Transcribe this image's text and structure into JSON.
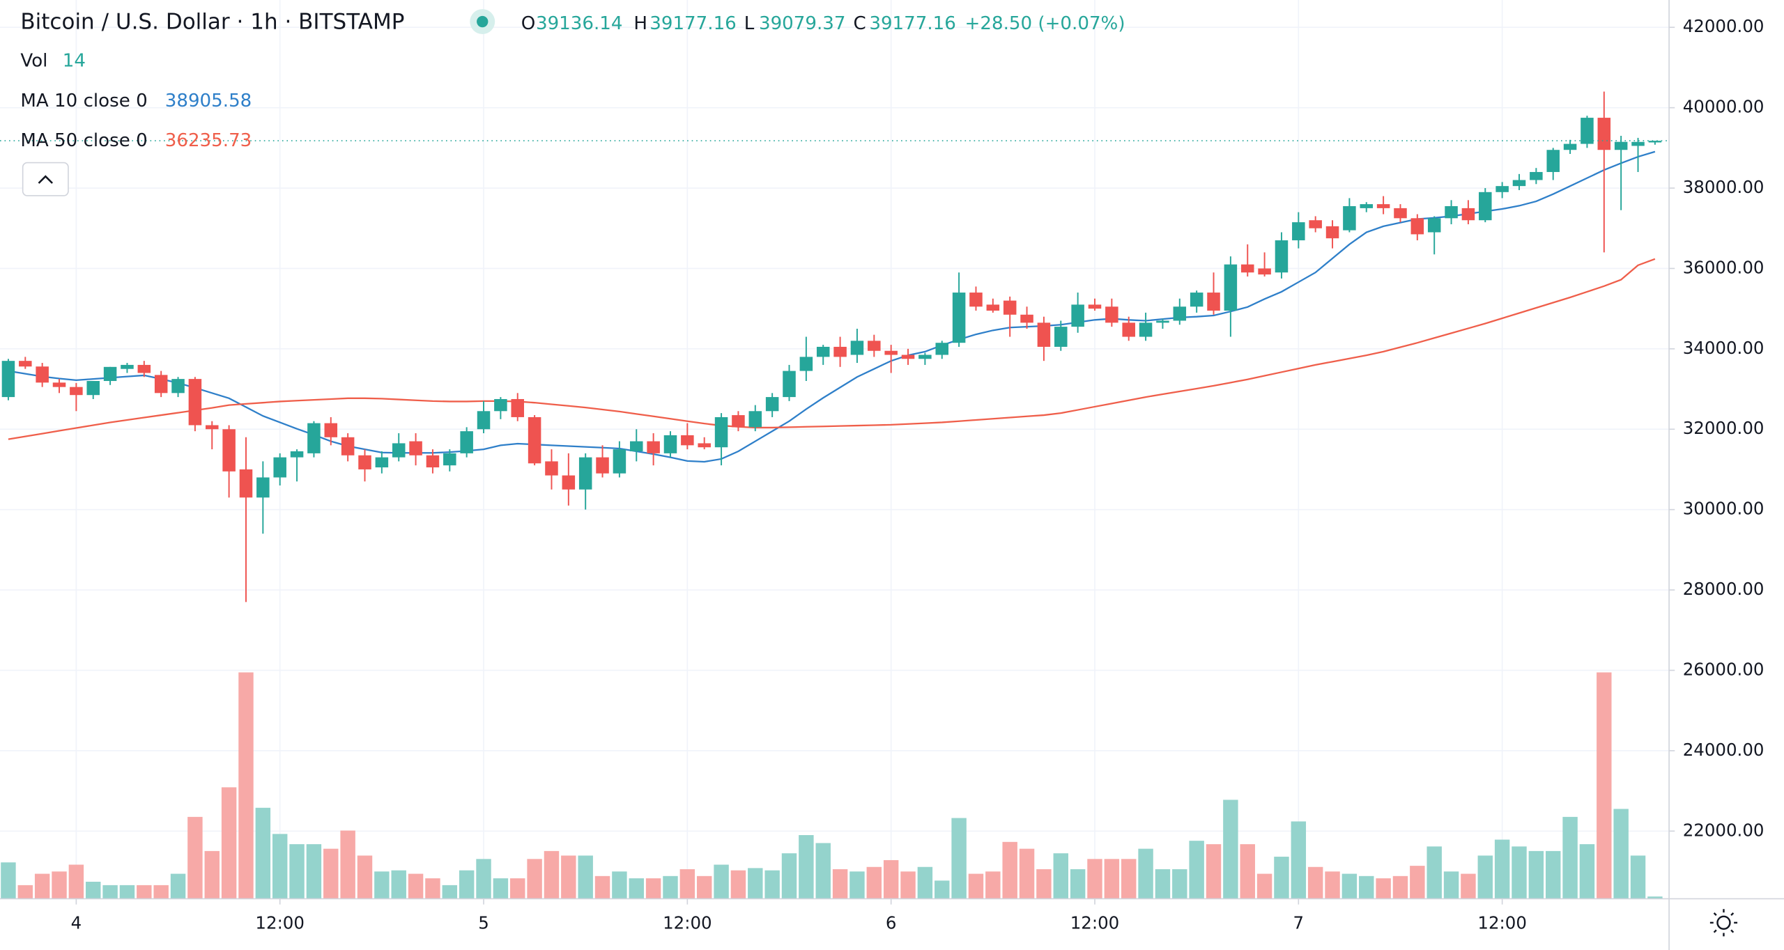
{
  "chart_data": {
    "type": "candlestick",
    "title": "Bitcoin / U.S. Dollar · 1h · BITSTAMP",
    "ohlc_keys": [
      "O",
      "H",
      "L",
      "C"
    ],
    "change": {
      "value": 28.5,
      "label": "+28.50 (+0.07%)"
    },
    "volume_label": "Vol",
    "up_color": "#26a69a",
    "down_color": "#ef5350",
    "up_volume_color": "#94d3cc",
    "down_volume_color": "#f7a9a7",
    "x": [
      -4,
      -3,
      -2,
      -1,
      0,
      1,
      2,
      3,
      4,
      5,
      6,
      7,
      8,
      9,
      10,
      11,
      12,
      13,
      14,
      15,
      16,
      17,
      18,
      19,
      20,
      21,
      22,
      23,
      24,
      25,
      26,
      27,
      28,
      29,
      30,
      31,
      32,
      33,
      34,
      35,
      36,
      37,
      38,
      39,
      40,
      41,
      42,
      43,
      44,
      45,
      46,
      47,
      48,
      49,
      50,
      51,
      52,
      53,
      54,
      55,
      56,
      57,
      58,
      59,
      60,
      61,
      62,
      63,
      64,
      65,
      66,
      67,
      68,
      69,
      70,
      71,
      72,
      73,
      74,
      75,
      76,
      77,
      78,
      79,
      80,
      81,
      82,
      83,
      84,
      85,
      86,
      87,
      88,
      89,
      90,
      91,
      92,
      93
    ],
    "open": [
      32800,
      33700,
      33560,
      33160,
      33050,
      32850,
      33200,
      33500,
      33600,
      33350,
      32900,
      33250,
      32100,
      32000,
      31000,
      30300,
      30800,
      31300,
      31400,
      32150,
      31800,
      31350,
      31050,
      31300,
      31700,
      31350,
      31100,
      31400,
      32000,
      32450,
      32750,
      32300,
      31200,
      30850,
      30500,
      31300,
      30900,
      31450,
      31700,
      31400,
      31850,
      31650,
      31550,
      32350,
      32050,
      32450,
      32800,
      33450,
      33800,
      34050,
      33850,
      34200,
      33950,
      33850,
      33750,
      33850,
      34150,
      35400,
      35100,
      35200,
      34850,
      34650,
      34050,
      34550,
      35100,
      35050,
      34650,
      34300,
      34650,
      34700,
      35050,
      35400,
      34950,
      36100,
      36000,
      35900,
      36700,
      37200,
      37050,
      36950,
      37500,
      37600,
      37500,
      37250,
      36900,
      37250,
      37500,
      37200,
      37900,
      38050,
      38200,
      38400,
      38950,
      39100,
      39750,
      38950,
      39050,
      39136.14
    ],
    "high": [
      33750,
      33800,
      33650,
      33250,
      33150,
      33200,
      33550,
      33650,
      33700,
      33450,
      33300,
      33300,
      32200,
      32100,
      31800,
      31200,
      31400,
      31500,
      32200,
      32300,
      31900,
      31500,
      31450,
      31900,
      31900,
      31500,
      31500,
      32050,
      32700,
      32800,
      32900,
      32350,
      31500,
      31400,
      31400,
      31600,
      31700,
      32000,
      31900,
      31950,
      32150,
      31800,
      32400,
      32450,
      32600,
      32900,
      33600,
      34300,
      34100,
      34300,
      34500,
      34350,
      34100,
      34000,
      33900,
      34200,
      35900,
      35550,
      35250,
      35300,
      35050,
      34800,
      34700,
      35400,
      35250,
      35250,
      34800,
      34900,
      34750,
      35250,
      35450,
      35900,
      36300,
      36600,
      36400,
      36900,
      37400,
      37300,
      37200,
      37750,
      37650,
      37800,
      37600,
      37350,
      37300,
      37700,
      37700,
      38000,
      38150,
      38350,
      38500,
      39000,
      39200,
      39800,
      40400,
      39300,
      39250,
      39177.16
    ],
    "low": [
      32720,
      33500,
      33050,
      32900,
      32450,
      32750,
      33100,
      33400,
      33300,
      32800,
      32800,
      31950,
      31500,
      30300,
      27700,
      29400,
      30600,
      30700,
      31300,
      31600,
      31200,
      30700,
      30900,
      31200,
      31100,
      30900,
      30950,
      31300,
      31900,
      32250,
      32200,
      31100,
      30500,
      30100,
      30000,
      30800,
      30800,
      31200,
      31100,
      31300,
      31500,
      31500,
      31100,
      31950,
      31950,
      32300,
      32700,
      33200,
      33600,
      33550,
      33650,
      33800,
      33400,
      33600,
      33600,
      33750,
      34050,
      34950,
      34900,
      34300,
      34500,
      33700,
      33950,
      34400,
      34950,
      34550,
      34200,
      34200,
      34500,
      34600,
      34900,
      34850,
      34300,
      35800,
      35800,
      35750,
      36500,
      36900,
      36500,
      36900,
      37400,
      37350,
      37150,
      36700,
      36350,
      37100,
      37100,
      37150,
      37750,
      37950,
      38100,
      38200,
      38850,
      39000,
      36400,
      37450,
      38400,
      39079.37
    ],
    "close": [
      33700,
      33560,
      33160,
      33050,
      32850,
      33200,
      33550,
      33600,
      33400,
      32900,
      33250,
      32100,
      32000,
      30950,
      30300,
      30800,
      31300,
      31450,
      32150,
      31800,
      31350,
      31000,
      31300,
      31650,
      31350,
      31050,
      31400,
      31950,
      32450,
      32750,
      32300,
      31150,
      30850,
      30500,
      31300,
      30900,
      31500,
      31700,
      31400,
      31850,
      31600,
      31550,
      32300,
      32050,
      32450,
      32800,
      33450,
      33800,
      34050,
      33800,
      34200,
      33950,
      33850,
      33750,
      33850,
      34150,
      35400,
      35050,
      34950,
      34850,
      34650,
      34050,
      34550,
      35100,
      35000,
      34650,
      34300,
      34650,
      34700,
      35050,
      35400,
      34950,
      36100,
      35900,
      35850,
      36700,
      37150,
      37000,
      36750,
      37550,
      37600,
      37500,
      37250,
      36850,
      37250,
      37550,
      37200,
      37900,
      38050,
      38200,
      38400,
      38950,
      39100,
      39750,
      38950,
      39150,
      39148.66,
      39177.16
    ],
    "volume": [
      224,
      84,
      154,
      168,
      210,
      105,
      84,
      84,
      84,
      84,
      154,
      504,
      294,
      686,
      1393,
      560,
      399,
      336,
      336,
      308,
      420,
      266,
      168,
      175,
      154,
      126,
      84,
      175,
      245,
      126,
      126,
      245,
      294,
      266,
      266,
      140,
      168,
      126,
      126,
      140,
      182,
      140,
      210,
      175,
      189,
      175,
      280,
      392,
      343,
      182,
      168,
      196,
      238,
      168,
      196,
      112,
      497,
      154,
      168,
      350,
      308,
      182,
      280,
      182,
      245,
      245,
      245,
      308,
      182,
      182,
      357,
      336,
      609,
      336,
      154,
      259,
      476,
      196,
      168,
      154,
      140,
      126,
      140,
      203,
      322,
      168,
      154,
      266,
      364,
      322,
      294,
      294,
      504,
      336,
      1393,
      553,
      266,
      14
    ],
    "ma": [
      {
        "name": "MA 10 close 0",
        "color": "#2e7fc9",
        "values": [
          33450,
          33380,
          33310,
          33260,
          33220,
          33250,
          33280,
          33310,
          33340,
          33250,
          33150,
          33030,
          32900,
          32770,
          32550,
          32330,
          32170,
          32010,
          31860,
          31700,
          31580,
          31500,
          31420,
          31410,
          31410,
          31410,
          31430,
          31460,
          31500,
          31600,
          31640,
          31620,
          31600,
          31580,
          31560,
          31540,
          31520,
          31450,
          31380,
          31300,
          31210,
          31190,
          31260,
          31450,
          31700,
          31950,
          32200,
          32500,
          32780,
          33040,
          33300,
          33500,
          33700,
          33840,
          33930,
          34090,
          34230,
          34360,
          34460,
          34530,
          34550,
          34570,
          34600,
          34660,
          34720,
          34750,
          34720,
          34700,
          34740,
          34780,
          34800,
          34830,
          34930,
          35040,
          35240,
          35420,
          35660,
          35900,
          36250,
          36600,
          36900,
          37050,
          37140,
          37230,
          37260,
          37300,
          37360,
          37420,
          37480,
          37560,
          37670,
          37850,
          38050,
          38250,
          38450,
          38620,
          38780,
          38905.58
        ]
      },
      {
        "name": "MA 50 close 0",
        "color": "#ef5e4a",
        "values": [
          31750,
          31820,
          31890,
          31960,
          32030,
          32100,
          32170,
          32230,
          32290,
          32350,
          32410,
          32470,
          32530,
          32600,
          32630,
          32660,
          32690,
          32710,
          32730,
          32750,
          32770,
          32770,
          32760,
          32740,
          32720,
          32700,
          32690,
          32690,
          32700,
          32700,
          32690,
          32660,
          32620,
          32580,
          32540,
          32490,
          32440,
          32380,
          32320,
          32260,
          32200,
          32140,
          32090,
          32060,
          32040,
          32040,
          32050,
          32060,
          32070,
          32080,
          32090,
          32100,
          32110,
          32130,
          32150,
          32170,
          32200,
          32230,
          32260,
          32290,
          32320,
          32350,
          32400,
          32480,
          32560,
          32640,
          32720,
          32800,
          32870,
          32940,
          33010,
          33080,
          33160,
          33240,
          33330,
          33420,
          33510,
          33600,
          33680,
          33760,
          33840,
          33930,
          34040,
          34150,
          34270,
          34390,
          34510,
          34630,
          34760,
          34890,
          35020,
          35150,
          35280,
          35420,
          35560,
          35720,
          36080,
          36235.73
        ]
      }
    ],
    "xlim": [
      -4.49,
      93.83
    ],
    "xticks": [
      {
        "value": 0,
        "label": "4"
      },
      {
        "value": 12,
        "label": "12:00"
      },
      {
        "value": 24,
        "label": "5"
      },
      {
        "value": 36,
        "label": "12:00"
      },
      {
        "value": 48,
        "label": "6"
      },
      {
        "value": 60,
        "label": "12:00"
      },
      {
        "value": 72,
        "label": "7"
      },
      {
        "value": 84,
        "label": "12:00"
      }
    ],
    "ylim": [
      20315,
      42680
    ],
    "yticks": [
      {
        "value": 22000,
        "label": "22000.00"
      },
      {
        "value": 24000,
        "label": "24000.00"
      },
      {
        "value": 26000,
        "label": "26000.00"
      },
      {
        "value": 28000,
        "label": "28000.00"
      },
      {
        "value": 30000,
        "label": "30000.00"
      },
      {
        "value": 32000,
        "label": "32000.00"
      },
      {
        "value": 34000,
        "label": "34000.00"
      },
      {
        "value": 36000,
        "label": "36000.00"
      },
      {
        "value": 38000,
        "label": "38000.00"
      },
      {
        "value": 40000,
        "label": "40000.00"
      },
      {
        "value": 42000,
        "label": "42000.00"
      }
    ],
    "grid": true
  }
}
